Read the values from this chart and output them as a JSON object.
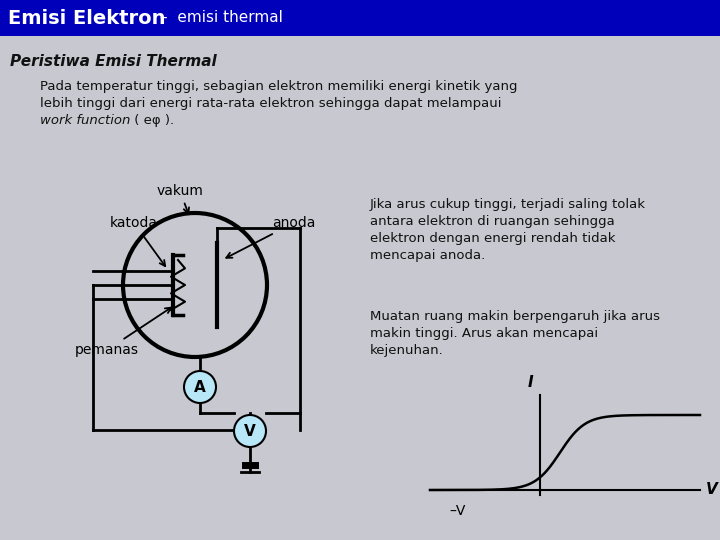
{
  "title": "Emisi Elektron – emisi thermal",
  "title_bg": "#0000bb",
  "title_fg": "#ffffff",
  "subtitle": "Peristiwa Emisi Thermal",
  "body_bg": "#c8c8d0",
  "para1_line1": "Pada temperatur tinggi, sebagian elektron memiliki energi kinetik yang",
  "para1_line2": "lebih tinggi dari energi rata-rata elektron sehingga dapat melampaui",
  "para1_line3_plain": "work function",
  "para1_line3_rest": " ( eφ ).",
  "label_katoda": "katoda",
  "label_vakum": "vakum",
  "label_anoda": "anoda",
  "label_pemanas": "pemanas",
  "label_A": "A",
  "label_V": "V",
  "right_text1": "Jika arus cukup tinggi, terjadi saling tolak\nantara elektron di ruangan sehingga\nelektron dengan energi rendah tidak\nmencapai anoda.",
  "right_text2": "Muatan ruang makin berpengaruh jika arus\nmakin tinggi. Arus akan mencapai\nkejenuhan.",
  "iv_label_I": "I",
  "iv_label_V": "V",
  "iv_label_negV": "–V"
}
